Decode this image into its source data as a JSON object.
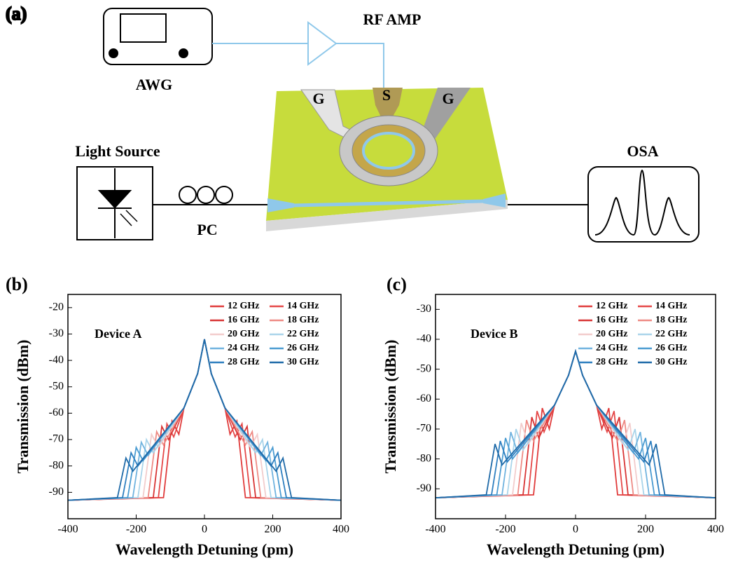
{
  "diagram": {
    "panel_label": "(a)",
    "labels": [
      "AWG",
      "RF AMP",
      "G",
      "S",
      "G",
      "Light Source",
      "PC",
      "OSA"
    ]
  },
  "chart_data": [
    {
      "type": "line",
      "panel_label": "(b)",
      "annotation": "Device A",
      "xlabel": "Wavelength Detuning (pm)",
      "ylabel": "Transmission (dBm)",
      "xlim": [
        -400,
        400
      ],
      "ylim": [
        -100,
        -15
      ],
      "xticks": [
        -400,
        -200,
        0,
        200,
        400
      ],
      "yticks": [
        -90,
        -80,
        -70,
        -60,
        -50,
        -40,
        -30,
        -20
      ],
      "series": [
        {
          "name": "12 GHz",
          "color": "#e03b3b",
          "x": [
            -400,
            -120,
            -95,
            -75,
            -60,
            -20,
            0,
            20,
            60,
            75,
            95,
            120,
            400
          ],
          "values": [
            -93,
            -92,
            -63,
            -68,
            -58,
            -45,
            -32,
            -45,
            -58,
            -68,
            -63,
            -92,
            -93
          ]
        },
        {
          "name": "14 GHz",
          "color": "#e54848",
          "x": [
            -400,
            -135,
            -110,
            -90,
            -60,
            -20,
            0,
            20,
            60,
            90,
            110,
            135,
            400
          ],
          "values": [
            -93,
            -92,
            -64,
            -69,
            -58,
            -45,
            -32,
            -45,
            -58,
            -69,
            -64,
            -92,
            -93
          ]
        },
        {
          "name": "16 GHz",
          "color": "#d83535",
          "x": [
            -400,
            -150,
            -125,
            -105,
            -60,
            -20,
            0,
            20,
            60,
            105,
            125,
            150,
            400
          ],
          "values": [
            -93,
            -92,
            -65,
            -70,
            -58,
            -45,
            -32,
            -45,
            -58,
            -70,
            -65,
            -92,
            -93
          ]
        },
        {
          "name": "18 GHz",
          "color": "#ee8a84",
          "x": [
            -400,
            -165,
            -140,
            -120,
            -60,
            -20,
            0,
            20,
            60,
            120,
            140,
            165,
            400
          ],
          "values": [
            -93,
            -92,
            -67,
            -72,
            -58,
            -45,
            -32,
            -45,
            -58,
            -72,
            -67,
            -92,
            -93
          ]
        },
        {
          "name": "20 GHz",
          "color": "#f2cccc",
          "x": [
            -400,
            -180,
            -155,
            -135,
            -60,
            -20,
            0,
            20,
            60,
            135,
            155,
            180,
            400
          ],
          "values": [
            -93,
            -92,
            -68,
            -73,
            -58,
            -45,
            -32,
            -45,
            -58,
            -73,
            -68,
            -92,
            -93
          ]
        },
        {
          "name": "22 GHz",
          "color": "#a9d4ea",
          "x": [
            -400,
            -195,
            -170,
            -150,
            -60,
            -20,
            0,
            20,
            60,
            150,
            170,
            195,
            400
          ],
          "values": [
            -93,
            -92,
            -70,
            -75,
            -58,
            -45,
            -32,
            -45,
            -58,
            -75,
            -70,
            -92,
            -93
          ]
        },
        {
          "name": "24 GHz",
          "color": "#70b3df",
          "x": [
            -400,
            -210,
            -185,
            -165,
            -60,
            -20,
            0,
            20,
            60,
            165,
            185,
            210,
            400
          ],
          "values": [
            -93,
            -92,
            -71,
            -76,
            -58,
            -45,
            -32,
            -45,
            -58,
            -76,
            -71,
            -92,
            -93
          ]
        },
        {
          "name": "26 GHz",
          "color": "#4a9bd1",
          "x": [
            -400,
            -225,
            -200,
            -180,
            -60,
            -20,
            0,
            20,
            60,
            180,
            200,
            225,
            400
          ],
          "values": [
            -93,
            -92,
            -73,
            -78,
            -58,
            -45,
            -32,
            -45,
            -58,
            -78,
            -73,
            -92,
            -93
          ]
        },
        {
          "name": "28 GHz",
          "color": "#2e7fc0",
          "x": [
            -400,
            -240,
            -215,
            -195,
            -60,
            -20,
            0,
            20,
            60,
            195,
            215,
            240,
            400
          ],
          "values": [
            -93,
            -92,
            -75,
            -80,
            -58,
            -45,
            -32,
            -45,
            -58,
            -80,
            -75,
            -92,
            -93
          ]
        },
        {
          "name": "30 GHz",
          "color": "#1f6aa8",
          "x": [
            -400,
            -255,
            -230,
            -210,
            -60,
            -20,
            0,
            20,
            60,
            210,
            230,
            255,
            400
          ],
          "values": [
            -93,
            -92,
            -77,
            -82,
            -58,
            -45,
            -32,
            -45,
            -58,
            -82,
            -77,
            -92,
            -93
          ]
        }
      ]
    },
    {
      "type": "line",
      "panel_label": "(c)",
      "annotation": "Device B",
      "xlabel": "Wavelength Detuning (pm)",
      "ylabel": "Transmission (dBm)",
      "xlim": [
        -400,
        400
      ],
      "ylim": [
        -100,
        -25
      ],
      "xticks": [
        -400,
        -200,
        0,
        200,
        400
      ],
      "yticks": [
        -90,
        -80,
        -70,
        -60,
        -50,
        -40,
        -30
      ],
      "series": [
        {
          "name": "12 GHz",
          "color": "#e03b3b",
          "x": [
            -400,
            -120,
            -95,
            -75,
            -60,
            -20,
            0,
            20,
            60,
            75,
            95,
            120,
            400
          ],
          "values": [
            -93,
            -92,
            -63,
            -70,
            -62,
            -52,
            -44,
            -52,
            -62,
            -70,
            -63,
            -92,
            -93
          ]
        },
        {
          "name": "14 GHz",
          "color": "#e54848",
          "x": [
            -400,
            -135,
            -110,
            -90,
            -60,
            -20,
            0,
            20,
            60,
            90,
            110,
            135,
            400
          ],
          "values": [
            -93,
            -92,
            -64,
            -71,
            -62,
            -52,
            -44,
            -52,
            -62,
            -71,
            -64,
            -92,
            -93
          ]
        },
        {
          "name": "16 GHz",
          "color": "#d83535",
          "x": [
            -400,
            -150,
            -125,
            -105,
            -60,
            -20,
            0,
            20,
            60,
            105,
            125,
            150,
            400
          ],
          "values": [
            -93,
            -92,
            -66,
            -73,
            -62,
            -52,
            -44,
            -52,
            -62,
            -73,
            -66,
            -92,
            -93
          ]
        },
        {
          "name": "18 GHz",
          "color": "#ee8a84",
          "x": [
            -400,
            -165,
            -140,
            -120,
            -60,
            -20,
            0,
            20,
            60,
            120,
            140,
            165,
            400
          ],
          "values": [
            -93,
            -92,
            -67,
            -74,
            -62,
            -52,
            -44,
            -52,
            -62,
            -74,
            -67,
            -92,
            -93
          ]
        },
        {
          "name": "20 GHz",
          "color": "#f2cccc",
          "x": [
            -400,
            -180,
            -155,
            -135,
            -60,
            -20,
            0,
            20,
            60,
            135,
            155,
            180,
            400
          ],
          "values": [
            -93,
            -92,
            -68,
            -75,
            -62,
            -52,
            -44,
            -52,
            -62,
            -75,
            -68,
            -92,
            -93
          ]
        },
        {
          "name": "22 GHz",
          "color": "#a9d4ea",
          "x": [
            -400,
            -195,
            -170,
            -150,
            -60,
            -20,
            0,
            20,
            60,
            150,
            170,
            195,
            400
          ],
          "values": [
            -93,
            -92,
            -70,
            -77,
            -62,
            -52,
            -44,
            -52,
            -62,
            -77,
            -70,
            -92,
            -93
          ]
        },
        {
          "name": "24 GHz",
          "color": "#70b3df",
          "x": [
            -400,
            -210,
            -185,
            -165,
            -60,
            -20,
            0,
            20,
            60,
            165,
            185,
            210,
            400
          ],
          "values": [
            -93,
            -92,
            -71,
            -78,
            -62,
            -52,
            -44,
            -52,
            -62,
            -78,
            -71,
            -92,
            -93
          ]
        },
        {
          "name": "26 GHz",
          "color": "#4a9bd1",
          "x": [
            -400,
            -225,
            -200,
            -180,
            -60,
            -20,
            0,
            20,
            60,
            180,
            200,
            225,
            400
          ],
          "values": [
            -93,
            -92,
            -73,
            -80,
            -62,
            -52,
            -44,
            -52,
            -62,
            -80,
            -73,
            -92,
            -93
          ]
        },
        {
          "name": "28 GHz",
          "color": "#2e7fc0",
          "x": [
            -400,
            -240,
            -215,
            -195,
            -60,
            -20,
            0,
            20,
            60,
            195,
            215,
            240,
            400
          ],
          "values": [
            -93,
            -92,
            -74,
            -81,
            -62,
            -52,
            -44,
            -52,
            -62,
            -81,
            -74,
            -92,
            -93
          ]
        },
        {
          "name": "30 GHz",
          "color": "#1f6aa8",
          "x": [
            -400,
            -255,
            -230,
            -210,
            -60,
            -20,
            0,
            20,
            60,
            210,
            230,
            255,
            400
          ],
          "values": [
            -93,
            -92,
            -75,
            -82,
            -62,
            -52,
            -44,
            -52,
            -62,
            -82,
            -75,
            -92,
            -93
          ]
        }
      ]
    }
  ]
}
